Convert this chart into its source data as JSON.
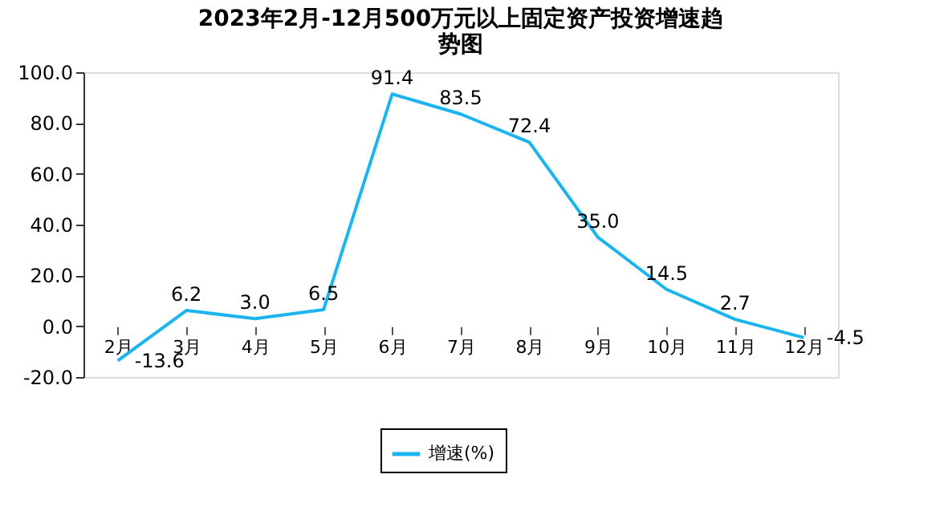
{
  "chart_data": {
    "type": "line",
    "title": "2023年2月-12月500万元以上固定资产投资增速趋势图",
    "categories": [
      "2月",
      "3月",
      "4月",
      "5月",
      "6月",
      "7月",
      "8月",
      "9月",
      "10月",
      "11月",
      "12月"
    ],
    "series": [
      {
        "name": "增速(%)",
        "color": "#1cb4ee",
        "values": [
          -13.6,
          6.2,
          3.0,
          6.5,
          91.4,
          83.5,
          72.4,
          35.0,
          14.5,
          2.7,
          -4.5
        ],
        "value_labels": [
          "-13.6",
          "6.2",
          "3.0",
          "6.5",
          "91.4",
          "83.5",
          "72.4",
          "35.0",
          "14.5",
          "2.7",
          "-4.5"
        ]
      }
    ],
    "ylim": [
      -20,
      100
    ],
    "yticks": [
      {
        "value": -20,
        "label": "-20.0"
      },
      {
        "value": 0,
        "label": "0.0"
      },
      {
        "value": 20,
        "label": "20.0"
      },
      {
        "value": 40,
        "label": "40.0"
      },
      {
        "value": 60,
        "label": "60.0"
      },
      {
        "value": 80,
        "label": "80.0"
      },
      {
        "value": 100,
        "label": "100.0"
      }
    ],
    "legend": "bottom",
    "grid": false,
    "marker": "none",
    "line_style": "solid"
  }
}
